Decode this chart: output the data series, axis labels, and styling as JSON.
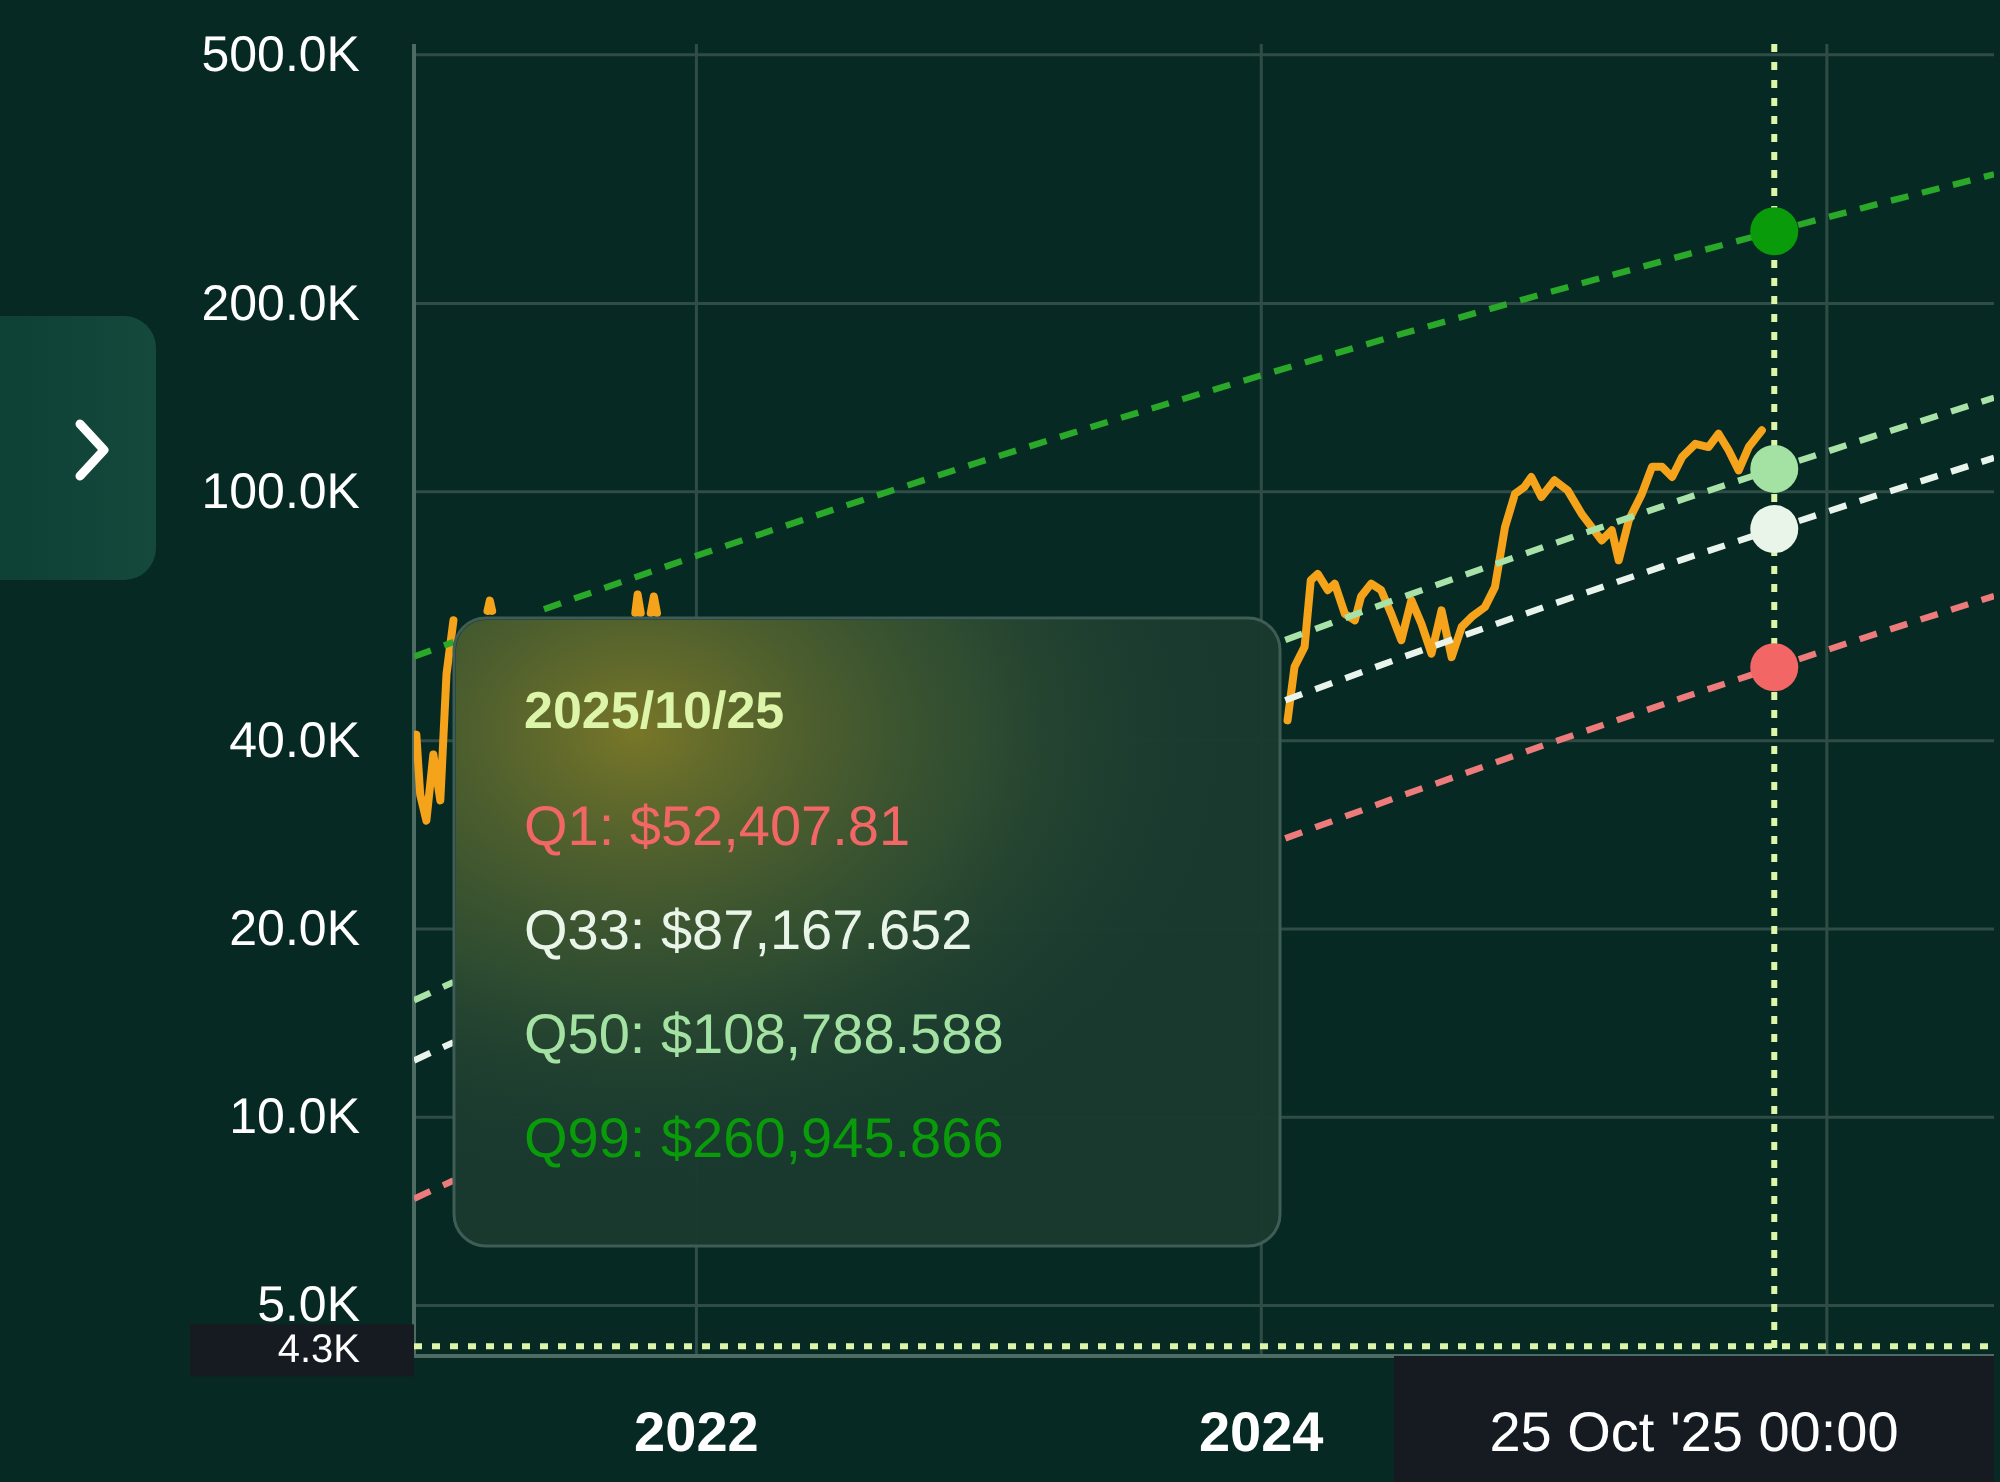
{
  "chart_data": {
    "type": "line",
    "xlim": [
      "2021-01-01",
      "2026-08-05"
    ],
    "xticks": [
      "2022",
      "2024",
      {
        "value": "2026",
        "label": null
      }
    ],
    "ylim": [
      4150,
      520000
    ],
    "yticks": [
      {
        "value": 5000,
        "label": "5.0K"
      },
      {
        "value": 10000,
        "label": "10.0K"
      },
      {
        "value": 20000,
        "label": "20.0K"
      },
      {
        "value": 40000,
        "label": "40.0K"
      },
      {
        "value": 100000,
        "label": "100.0K"
      },
      {
        "value": 200000,
        "label": "200.0K"
      },
      {
        "value": 500000,
        "label": "500.0K"
      }
    ],
    "log": "y",
    "grid": true,
    "series": [
      {
        "color": "#f5a31a",
        "line_style": "solid",
        "x": [
          "2021-01-01",
          "2021-01-04",
          "2021-01-09",
          "2021-01-17",
          "2021-01-26",
          "2021-02-04",
          "2021-02-12",
          "2021-02-21",
          "2021-03-15",
          "2021-04-06",
          "2021-04-09",
          "2021-04-12",
          "2021-07-01",
          "2021-10-14",
          "2021-10-17",
          "2021-10-21",
          "2021-10-28",
          "2021-11-03",
          "2021-11-07",
          "2021-11-11",
          "2022-06-01",
          "2024-02-04",
          "2024-02-13",
          "2024-02-26",
          "2024-03-05",
          "2024-03-14",
          "2024-03-27",
          "2024-04-05",
          "2024-04-18",
          "2024-05-01",
          "2024-05-09",
          "2024-05-22",
          "2024-06-04",
          "2024-06-17",
          "2024-06-30",
          "2024-07-13",
          "2024-07-26",
          "2024-08-08",
          "2024-08-21",
          "2024-09-03",
          "2024-09-16",
          "2024-09-29",
          "2024-10-16",
          "2024-10-29",
          "2024-11-11",
          "2024-11-24",
          "2024-12-06",
          "2024-12-15",
          "2024-12-28",
          "2025-01-14",
          "2025-01-31",
          "2025-02-18",
          "2025-03-03",
          "2025-03-16",
          "2025-03-29",
          "2025-04-07",
          "2025-04-20",
          "2025-05-07",
          "2025-05-20",
          "2025-06-02",
          "2025-06-15",
          "2025-06-28",
          "2025-07-15",
          "2025-08-01",
          "2025-08-14",
          "2025-08-27",
          "2025-09-09",
          "2025-09-22",
          "2025-10-09"
        ],
        "values": [
          39000,
          40900,
          32800,
          29800,
          38000,
          32100,
          51100,
          62300,
          null,
          64500,
          67000,
          64500,
          null,
          64000,
          68500,
          64000,
          null,
          64000,
          68000,
          64000,
          null,
          43100,
          52500,
          56500,
          72200,
          73900,
          69600,
          71300,
          63800,
          62300,
          68000,
          71300,
          69600,
          63800,
          57900,
          67100,
          61500,
          55100,
          64600,
          54400,
          60800,
          63100,
          65400,
          70400,
          87800,
          99300,
          101800,
          105600,
          98100,
          104300,
          100500,
          92200,
          87800,
          83600,
          86800,
          77700,
          90000,
          99300,
          109600,
          109600,
          105600,
          113700,
          119300,
          117900,
          123800,
          116500,
          108200,
          117900,
          125400
        ]
      },
      {
        "color": "#ee7b7b",
        "line_style": "dashed",
        "x": [
          "2021-01-01",
          "2021-02-21",
          "2022-06-01",
          "2024-02-01",
          "2024-07-01",
          "2025-01-01",
          "2025-07-01",
          "2025-10-25",
          "2026-03-01",
          "2026-08-05"
        ],
        "values": [
          7405,
          7919,
          null,
          27910,
          32680,
          39350,
          46960,
          52407.81,
          59020,
          68120
        ]
      },
      {
        "color": "#e8f4ec",
        "line_style": "dashed",
        "x": [
          "2021-01-01",
          "2021-02-21",
          "2022-06-01",
          "2024-02-01",
          "2024-07-01",
          "2025-01-01",
          "2025-07-01",
          "2025-10-25",
          "2026-03-01",
          "2026-08-05"
        ],
        "values": [
          12320,
          13170,
          null,
          46420,
          54360,
          65440,
          78110,
          87167.652,
          98160,
          113300
        ]
      },
      {
        "color": "#a8e2a8",
        "line_style": "dashed",
        "x": [
          "2021-01-01",
          "2021-02-21",
          "2022-06-01",
          "2024-02-01",
          "2024-07-01",
          "2025-01-01",
          "2025-07-01",
          "2025-10-25",
          "2026-03-01",
          "2026-08-05"
        ],
        "values": [
          15370,
          16440,
          null,
          57930,
          67840,
          81680,
          97490,
          108788.588,
          122500,
          141400
        ]
      },
      {
        "color": "#2aa82a",
        "line_style": "dashed",
        "x": [
          "2021-01-01",
          "2021-02-21",
          "2021-04-15",
          "2021-06-18",
          "2022-01-01",
          "2022-07-01",
          "2023-01-01",
          "2023-07-01",
          "2024-01-01",
          "2024-07-01",
          "2025-01-01",
          "2025-07-01",
          "2025-10-25",
          "2026-03-01",
          "2026-08-05"
        ],
        "values": [
          54500,
          57500,
          null,
          64900,
          79000,
          94000,
          111500,
          131000,
          153500,
          178900,
          207500,
          239000,
          260945.866,
          287000,
          321900
        ]
      },
      {
        "type": "scatter",
        "marker": "circle",
        "x": [
          "2025-10-25",
          "2025-10-25",
          "2025-10-25",
          "2025-10-25"
        ],
        "values": [
          52407.81,
          87167.652,
          108788.588,
          260945.866
        ],
        "colors": [
          "#f26666",
          "#e8f5e8",
          "#a3e2a3",
          "#0a9b0a"
        ]
      }
    ],
    "ref_lines": [
      {
        "axis": "x",
        "value": "2025-10-25",
        "label": "25 Oct '25 00:00",
        "color": "#dcf5a8",
        "line_style": "dotted"
      },
      {
        "axis": "y",
        "value": 4300,
        "label": "4.3K",
        "color": "#dcf5a8",
        "line_style": "dotted"
      }
    ],
    "annotations": [
      "2025/10/25",
      "Q1: $52,407.81",
      "Q33: $87,167.652",
      "Q50: $108,788.588",
      "Q99: $260,945.866"
    ]
  }
}
